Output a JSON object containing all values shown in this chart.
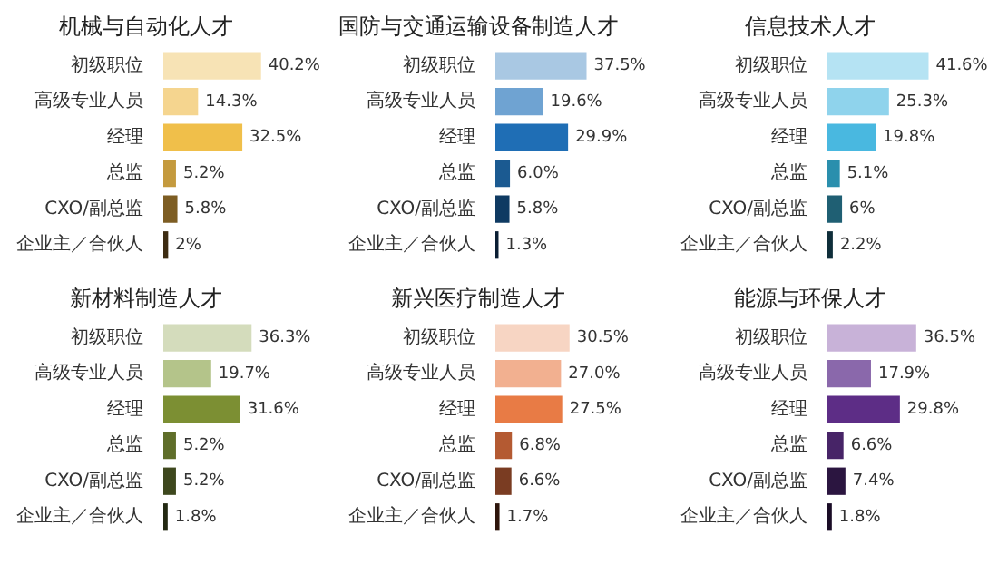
{
  "chart_data": [
    {
      "type": "bar",
      "orientation": "horizontal",
      "title": "机械与自动化人才",
      "tick_labels": "y",
      "categories": [
        "初级职位",
        "高级专业人员",
        "经理",
        "总监",
        "CXO/副总监",
        "企业主／合伙人"
      ],
      "values": [
        40.2,
        14.3,
        32.5,
        5.2,
        5.8,
        2
      ],
      "value_labels": [
        "40.2%",
        "14.3%",
        "32.5%",
        "5.2%",
        "5.8%",
        "2%"
      ],
      "colors": [
        "#f7e3b5",
        "#f5d58f",
        "#f0bf4a",
        "#c49a3e",
        "#7d5d23",
        "#3d2c12"
      ]
    },
    {
      "type": "bar",
      "orientation": "horizontal",
      "title": "国防与交通运输设备制造人才",
      "tick_labels": "y",
      "categories": [
        "初级职位",
        "高级专业人员",
        "经理",
        "总监",
        "CXO/副总监",
        "企业主／合伙人"
      ],
      "values": [
        37.5,
        19.6,
        29.9,
        6.0,
        5.8,
        1.3
      ],
      "value_labels": [
        "37.5%",
        "19.6%",
        "29.9%",
        "6.0%",
        "5.8%",
        "1.3%"
      ],
      "colors": [
        "#a9c8e3",
        "#6fa3d2",
        "#1f6eb5",
        "#1b5a91",
        "#0f3a62",
        "#0a1e33"
      ]
    },
    {
      "type": "bar",
      "orientation": "horizontal",
      "title": "信息技术人才",
      "tick_labels": "y",
      "categories": [
        "初级职位",
        "高级专业人员",
        "经理",
        "总监",
        "CXO/副总监",
        "企业主／合伙人"
      ],
      "values": [
        41.6,
        25.3,
        19.8,
        5.1,
        6,
        2.2
      ],
      "value_labels": [
        "41.6%",
        "25.3%",
        "19.8%",
        "5.1%",
        "6%",
        "2.2%"
      ],
      "colors": [
        "#b5e3f3",
        "#8fd3ec",
        "#49b8e0",
        "#2a8fad",
        "#1f5f73",
        "#0f2e3a"
      ]
    },
    {
      "type": "bar",
      "orientation": "horizontal",
      "title": "新材料制造人才",
      "tick_labels": "y",
      "categories": [
        "初级职位",
        "高级专业人员",
        "经理",
        "总监",
        "CXO/副总监",
        "企业主／合伙人"
      ],
      "values": [
        36.3,
        19.7,
        31.6,
        5.2,
        5.2,
        1.8
      ],
      "value_labels": [
        "36.3%",
        "19.7%",
        "31.6%",
        "5.2%",
        "5.2%",
        "1.8%"
      ],
      "colors": [
        "#d4dcbc",
        "#b4c48a",
        "#7c8f33",
        "#5f6e2a",
        "#3e481e",
        "#232912"
      ]
    },
    {
      "type": "bar",
      "orientation": "horizontal",
      "title": "新兴医疗制造人才",
      "tick_labels": "y",
      "categories": [
        "初级职位",
        "高级专业人员",
        "经理",
        "总监",
        "CXO/副总监",
        "企业主／合伙人"
      ],
      "values": [
        30.5,
        27.0,
        27.5,
        6.8,
        6.6,
        1.7
      ],
      "value_labels": [
        "30.5%",
        "27.0%",
        "27.5%",
        "6.8%",
        "6.6%",
        "1.7%"
      ],
      "colors": [
        "#f7d5c3",
        "#f2b090",
        "#e87b45",
        "#b45a32",
        "#7a3c22",
        "#2e150c"
      ]
    },
    {
      "type": "bar",
      "orientation": "horizontal",
      "title": "能源与环保人才",
      "tick_labels": "y",
      "categories": [
        "初级职位",
        "高级专业人员",
        "经理",
        "总监",
        "CXO/副总监",
        "企业主／合伙人"
      ],
      "values": [
        36.5,
        17.9,
        29.8,
        6.6,
        7.4,
        1.8
      ],
      "value_labels": [
        "36.5%",
        "17.9%",
        "29.8%",
        "6.6%",
        "7.4%",
        "1.8%"
      ],
      "colors": [
        "#c8b2d8",
        "#8a68ab",
        "#5d2d86",
        "#472467",
        "#2b1540",
        "#1a0c26"
      ]
    }
  ]
}
